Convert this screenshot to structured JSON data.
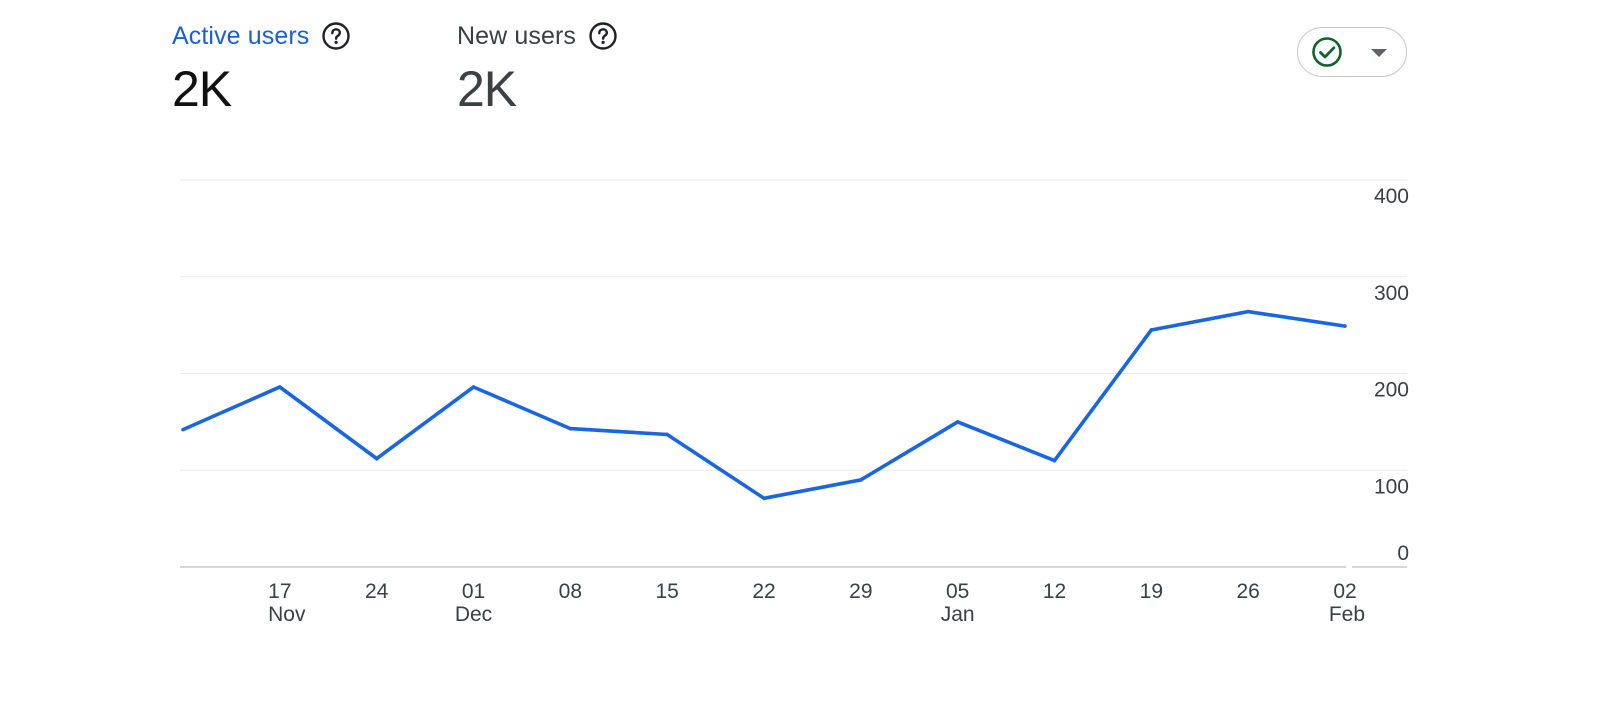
{
  "metrics": [
    {
      "label": "Active users",
      "value": "2K"
    },
    {
      "label": "New users",
      "value": "2K"
    }
  ],
  "compare_button": {
    "icon": "check-circle-icon",
    "caret": "caret-down-icon",
    "accent": "#0d652d"
  },
  "colors": {
    "series": "#1a66e0",
    "active_label": "#1a5fd6",
    "grid": "#e8eaed"
  },
  "chart_data": {
    "type": "line",
    "x": [
      "2024-11-10",
      "2024-11-17",
      "2024-11-24",
      "2024-12-01",
      "2024-12-08",
      "2024-12-15",
      "2024-12-22",
      "2024-12-29",
      "2025-01-05",
      "2025-01-12",
      "2025-01-19",
      "2025-01-26",
      "2025-02-02"
    ],
    "x_tick_labels": [
      {
        "day": "17",
        "month": "Nov"
      },
      {
        "day": "24",
        "month": ""
      },
      {
        "day": "01",
        "month": "Dec"
      },
      {
        "day": "08",
        "month": ""
      },
      {
        "day": "15",
        "month": ""
      },
      {
        "day": "22",
        "month": ""
      },
      {
        "day": "29",
        "month": ""
      },
      {
        "day": "05",
        "month": "Jan"
      },
      {
        "day": "12",
        "month": ""
      },
      {
        "day": "19",
        "month": ""
      },
      {
        "day": "26",
        "month": ""
      },
      {
        "day": "02",
        "month": "Feb"
      }
    ],
    "series": [
      {
        "name": "Active users",
        "values": [
          142,
          186,
          112,
          186,
          143,
          137,
          71,
          90,
          150,
          110,
          245,
          264,
          249
        ]
      }
    ],
    "y_ticks": [
      "0",
      "100",
      "200",
      "300",
      "400"
    ],
    "ylim": [
      0,
      400
    ],
    "y_axis_position": "right",
    "grid": true,
    "legend": "none"
  }
}
